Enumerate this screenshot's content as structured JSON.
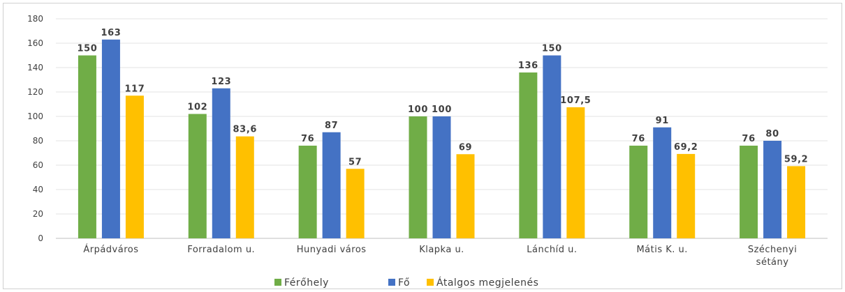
{
  "chart_data": {
    "type": "bar",
    "title": "",
    "xlabel": "",
    "ylabel": "",
    "ylim": [
      0,
      180
    ],
    "ytick_step": 20,
    "grid": true,
    "legend_position": "bottom",
    "categories": [
      "Árpádváros",
      "Forradalom u.",
      "Hunyadi város",
      "Klapka u.",
      "Lánchíd u.",
      "Mátis K. u.",
      "Széchenyi sétány"
    ],
    "category_lines": [
      [
        "Árpádváros"
      ],
      [
        "Forradalom u."
      ],
      [
        "Hunyadi város"
      ],
      [
        "Klapka u."
      ],
      [
        "Lánchíd u."
      ],
      [
        "Mátis K. u."
      ],
      [
        "Széchenyi",
        "sétány"
      ]
    ],
    "series": [
      {
        "name": "Férőhely",
        "color": "#70ad47",
        "values": [
          150,
          102,
          76,
          100,
          136,
          76,
          76
        ],
        "labels": [
          "150",
          "102",
          "76",
          "100",
          "136",
          "76",
          "76"
        ]
      },
      {
        "name": "Fő",
        "color": "#4472c4",
        "values": [
          163,
          123,
          87,
          100,
          150,
          91,
          80
        ],
        "labels": [
          "163",
          "123",
          "87",
          "100",
          "150",
          "91",
          "80"
        ]
      },
      {
        "name": "Átalgos megjelenés",
        "color": "#ffc000",
        "values": [
          117,
          83.6,
          57,
          69,
          107.5,
          69.2,
          59.2
        ],
        "labels": [
          "117",
          "83,6",
          "57",
          "69",
          "107,5",
          "69,2",
          "59,2"
        ]
      }
    ]
  }
}
